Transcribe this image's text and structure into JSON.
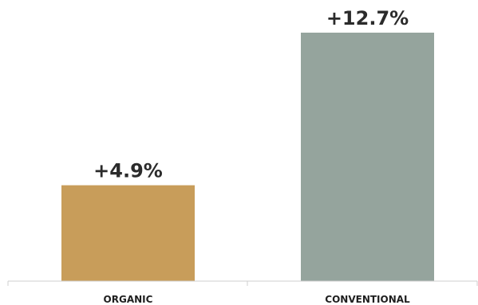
{
  "chart_data": {
    "type": "bar",
    "categories": [
      "ORGANIC",
      "CONVENTIONAL"
    ],
    "values": [
      4.9,
      12.7
    ],
    "data_labels": [
      "+4.9%",
      "+12.7%"
    ],
    "colors": [
      "#c89d5a",
      "#95a49d"
    ],
    "title": "",
    "xlabel": "",
    "ylabel": "",
    "ylim": [
      0,
      12.7
    ],
    "grid": false,
    "legend": "none"
  }
}
